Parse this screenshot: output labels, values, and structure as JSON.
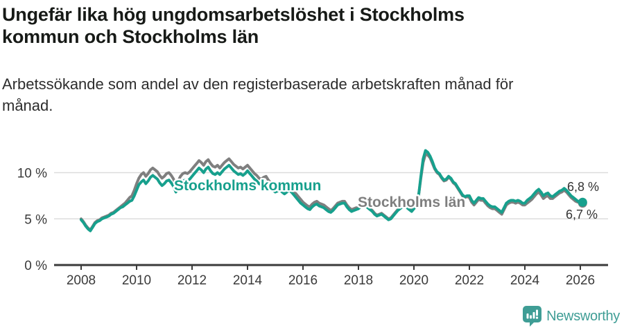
{
  "header": {
    "title_line1": "Ungefär lika hög ungdomsarbetslöshet i Stockholms",
    "title_line2": "kommun och Stockholms län",
    "subtitle_line1": "Arbetssökande som andel av den registerbaserade arbetskraften månad för",
    "subtitle_line2": "månad."
  },
  "colors": {
    "kommun_teal": "#17a08d",
    "lan_gray": "#7f7f7f",
    "axis": "#3a3a3a",
    "gridline": "#dcdcdc",
    "value_label": "#333333",
    "brand_teal": "#3f9d95"
  },
  "chart_data": {
    "type": "line",
    "title": "Ungefär lika hög ungdomsarbetslöshet i Stockholms kommun och Stockholms län",
    "subtitle": "Arbetssökande som andel av den registerbaserade arbetskraften månad för månad.",
    "xlabel": "",
    "ylabel": "",
    "x_unit": "decimal_year_monthly",
    "x_start": 2008.0,
    "x_step": 0.0833333,
    "xlim": [
      2007.0,
      2027.0
    ],
    "ylim": [
      0,
      13.7
    ],
    "grid": "horizontal",
    "legend": "inline-labels",
    "x_ticks": [
      2008,
      2010,
      2012,
      2014,
      2016,
      2018,
      2020,
      2022,
      2024,
      2026
    ],
    "y_ticks": [
      {
        "value": 0,
        "label": "0 %"
      },
      {
        "value": 5,
        "label": "5 %"
      },
      {
        "value": 10,
        "label": "10 %"
      }
    ],
    "series": [
      {
        "name": "Stockholms län",
        "color": "#7f7f7f",
        "last_value_label": "6,7 %",
        "values": [
          5.0,
          4.7,
          4.3,
          4.0,
          3.8,
          4.2,
          4.6,
          4.8,
          4.9,
          5.1,
          5.2,
          5.3,
          5.4,
          5.6,
          5.7,
          5.9,
          6.1,
          6.3,
          6.5,
          6.7,
          7.0,
          7.3,
          7.5,
          8.1,
          8.8,
          9.4,
          9.8,
          10.0,
          9.6,
          9.9,
          10.3,
          10.5,
          10.3,
          10.1,
          9.7,
          9.4,
          9.6,
          9.9,
          10.0,
          9.7,
          9.3,
          8.7,
          9.1,
          9.6,
          9.9,
          10.0,
          9.9,
          10.1,
          10.4,
          10.7,
          11.0,
          11.3,
          11.1,
          10.8,
          11.2,
          11.4,
          11.0,
          10.7,
          10.6,
          10.8,
          10.5,
          10.8,
          11.1,
          11.3,
          11.5,
          11.2,
          10.9,
          10.7,
          10.5,
          10.6,
          10.4,
          10.6,
          10.8,
          10.5,
          10.2,
          9.9,
          9.7,
          9.4,
          9.3,
          9.5,
          9.6,
          9.2,
          8.9,
          8.7,
          8.3,
          8.4,
          8.5,
          8.3,
          8.1,
          8.3,
          8.5,
          8.3,
          8.0,
          7.7,
          7.4,
          7.1,
          6.8,
          6.6,
          6.4,
          6.3,
          6.6,
          6.8,
          6.9,
          6.7,
          6.6,
          6.5,
          6.3,
          6.1,
          5.9,
          6.1,
          6.4,
          6.7,
          6.8,
          6.9,
          6.9,
          6.5,
          6.2,
          6.0,
          6.1,
          6.2,
          6.2,
          6.4,
          6.5,
          6.5,
          6.3,
          6.1,
          5.9,
          5.6,
          5.4,
          5.5,
          5.6,
          5.4,
          5.2,
          5.0,
          5.1,
          5.4,
          5.7,
          6.0,
          6.2,
          6.4,
          6.5,
          6.3,
          6.1,
          5.9,
          6.2,
          6.5,
          7.5,
          9.4,
          11.1,
          12.0,
          11.9,
          11.6,
          11.0,
          10.4,
          10.0,
          9.8,
          9.4,
          9.1,
          9.2,
          9.5,
          9.3,
          8.9,
          8.7,
          8.3,
          7.9,
          7.5,
          7.3,
          7.4,
          7.3,
          6.8,
          6.5,
          6.8,
          7.1,
          7.0,
          7.0,
          6.7,
          6.4,
          6.2,
          6.1,
          6.1,
          5.9,
          5.7,
          5.5,
          6.0,
          6.5,
          6.7,
          6.8,
          6.8,
          6.7,
          6.8,
          6.7,
          6.5,
          6.5,
          6.7,
          6.9,
          7.1,
          7.4,
          7.7,
          7.9,
          7.6,
          7.2,
          7.4,
          7.5,
          7.2,
          7.2,
          7.4,
          7.6,
          7.8,
          7.9,
          8.1,
          7.9,
          7.6,
          7.3,
          7.1,
          6.9,
          6.8,
          6.8,
          6.7
        ]
      },
      {
        "name": "Stockholms kommun",
        "color": "#17a08d",
        "last_value_label": "6,8 %",
        "values": [
          4.9,
          4.6,
          4.2,
          3.9,
          3.7,
          4.1,
          4.5,
          4.7,
          4.8,
          5.0,
          5.1,
          5.2,
          5.3,
          5.5,
          5.6,
          5.8,
          6.0,
          6.2,
          6.3,
          6.5,
          6.7,
          6.9,
          7.0,
          7.5,
          8.1,
          8.7,
          9.0,
          9.2,
          8.8,
          9.1,
          9.5,
          9.7,
          9.5,
          9.3,
          8.9,
          8.6,
          8.8,
          9.1,
          9.2,
          8.9,
          8.5,
          7.9,
          8.3,
          8.8,
          9.1,
          9.2,
          9.1,
          9.3,
          9.6,
          9.9,
          10.2,
          10.5,
          10.3,
          10.0,
          10.4,
          10.6,
          10.2,
          9.9,
          9.8,
          10.0,
          9.8,
          10.1,
          10.4,
          10.6,
          10.8,
          10.5,
          10.2,
          10.0,
          9.8,
          9.9,
          9.7,
          9.9,
          10.2,
          9.9,
          9.6,
          9.3,
          9.1,
          8.8,
          8.7,
          8.9,
          9.0,
          8.6,
          8.3,
          8.1,
          7.9,
          8.0,
          8.1,
          7.9,
          7.7,
          7.9,
          8.1,
          7.9,
          7.6,
          7.3,
          7.0,
          6.7,
          6.5,
          6.3,
          6.1,
          6.0,
          6.3,
          6.5,
          6.6,
          6.4,
          6.3,
          6.2,
          6.0,
          5.8,
          5.7,
          5.9,
          6.2,
          6.5,
          6.6,
          6.7,
          6.7,
          6.3,
          6.0,
          5.8,
          5.9,
          6.0,
          6.1,
          6.3,
          6.4,
          6.4,
          6.2,
          6.0,
          5.8,
          5.5,
          5.3,
          5.4,
          5.5,
          5.3,
          5.1,
          4.9,
          5.0,
          5.3,
          5.6,
          5.9,
          6.1,
          6.3,
          6.4,
          6.2,
          6.0,
          5.8,
          6.1,
          6.4,
          7.5,
          9.6,
          11.5,
          12.4,
          12.2,
          11.8,
          11.2,
          10.5,
          10.1,
          9.9,
          9.5,
          9.2,
          9.3,
          9.6,
          9.4,
          9.0,
          8.8,
          8.4,
          8.0,
          7.6,
          7.4,
          7.5,
          7.5,
          7.0,
          6.7,
          7.0,
          7.3,
          7.2,
          7.2,
          6.9,
          6.6,
          6.4,
          6.3,
          6.3,
          6.1,
          5.9,
          5.7,
          6.2,
          6.7,
          6.9,
          7.0,
          7.0,
          6.9,
          7.0,
          6.9,
          6.7,
          6.7,
          7.0,
          7.2,
          7.4,
          7.7,
          8.0,
          8.2,
          7.9,
          7.5,
          7.7,
          7.8,
          7.5,
          7.4,
          7.6,
          7.8,
          8.0,
          8.1,
          8.3,
          8.1,
          7.8,
          7.5,
          7.3,
          7.1,
          6.9,
          6.9,
          6.8
        ]
      }
    ]
  },
  "footer": {
    "brand": "Newsworthy",
    "logo_icon": "bar-chart-speech-bubble-icon"
  }
}
